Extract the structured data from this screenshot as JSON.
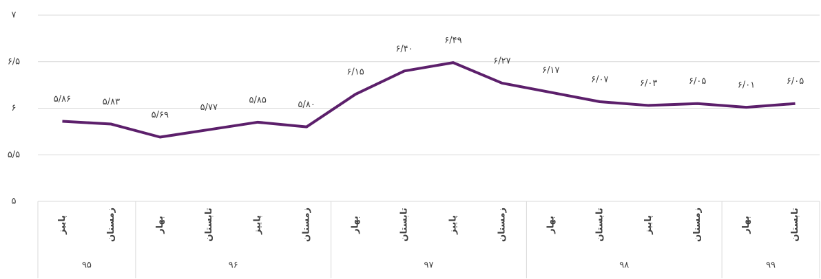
{
  "chart_data": {
    "type": "line",
    "color": "#5c1f6b",
    "groups": [
      {
        "name": "۹۵",
        "categories": [
          "پاییز",
          "زمستان"
        ]
      },
      {
        "name": "۹۶",
        "categories": [
          "بهار",
          "تابستان",
          "پاییز",
          "زمستان"
        ]
      },
      {
        "name": "۹۷",
        "categories": [
          "بهار",
          "تابستان",
          "پاییز",
          "زمستان"
        ]
      },
      {
        "name": "۹۸",
        "categories": [
          "بهار",
          "تابستان",
          "پاییز",
          "زمستان"
        ]
      },
      {
        "name": "۹۹",
        "categories": [
          "بهار",
          "تابستان"
        ]
      }
    ],
    "values": [
      5.86,
      5.83,
      5.69,
      5.77,
      5.85,
      5.8,
      6.15,
      6.4,
      6.49,
      6.27,
      6.17,
      6.07,
      6.03,
      6.05,
      6.01,
      6.05
    ],
    "value_labels": [
      "۵/۸۶",
      "۵/۸۳",
      "۵/۶۹",
      "۵/۷۷",
      "۵/۸۵",
      "۵/۸۰",
      "۶/۱۵",
      "۶/۴۰",
      "۶/۴۹",
      "۶/۲۷",
      "۶/۱۷",
      "۶/۰۷",
      "۶/۰۳",
      "۶/۰۵",
      "۶/۰۱",
      "۶/۰۵"
    ],
    "ylim": [
      5,
      7
    ],
    "yticks": [
      {
        "value": 5,
        "label": "۵"
      },
      {
        "value": 5.5,
        "label": "۵/۵"
      },
      {
        "value": 6,
        "label": "۶"
      },
      {
        "value": 6.5,
        "label": "۶/۵"
      },
      {
        "value": 7,
        "label": "۷"
      }
    ],
    "grid": true
  }
}
